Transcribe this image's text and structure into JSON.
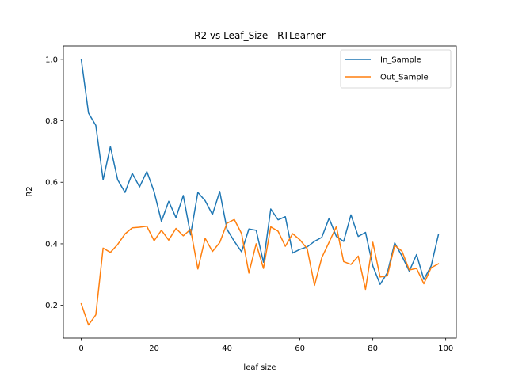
{
  "chart_data": {
    "type": "line",
    "title": "R2 vs Leaf_Size - RTLearner",
    "xlabel": "leaf size",
    "ylabel": "R2",
    "xlim": [
      -4.9,
      102.9
    ],
    "ylim": [
      0.0935,
      1.0434
    ],
    "xticks": [
      0,
      20,
      40,
      60,
      80,
      100
    ],
    "xtick_labels": [
      "0",
      "20",
      "40",
      "60",
      "80",
      "100"
    ],
    "yticks": [
      0.2,
      0.4,
      0.6,
      0.8,
      1.0
    ],
    "ytick_labels": [
      "0.2",
      "0.4",
      "0.6",
      "0.8",
      "1.0"
    ],
    "grid": false,
    "legend_position": "top-right",
    "x": [
      0,
      2,
      4,
      6,
      8,
      10,
      12,
      14,
      16,
      18,
      20,
      22,
      24,
      26,
      28,
      30,
      32,
      34,
      36,
      38,
      40,
      42,
      44,
      46,
      48,
      50,
      52,
      54,
      56,
      58,
      60,
      62,
      64,
      66,
      68,
      70,
      72,
      74,
      76,
      78,
      80,
      82,
      84,
      86,
      88,
      90,
      92,
      94,
      96,
      98
    ],
    "series": [
      {
        "name": "In_Sample",
        "color": "#1f77b4",
        "values": [
          1.0,
          0.825,
          0.785,
          0.608,
          0.716,
          0.608,
          0.567,
          0.629,
          0.585,
          0.635,
          0.569,
          0.473,
          0.538,
          0.485,
          0.557,
          0.429,
          0.567,
          0.54,
          0.495,
          0.57,
          0.447,
          0.408,
          0.374,
          0.448,
          0.444,
          0.34,
          0.513,
          0.478,
          0.488,
          0.37,
          0.382,
          0.39,
          0.408,
          0.421,
          0.483,
          0.424,
          0.408,
          0.494,
          0.424,
          0.437,
          0.328,
          0.268,
          0.306,
          0.403,
          0.36,
          0.311,
          0.365,
          0.284,
          0.328,
          0.43
        ]
      },
      {
        "name": "Out_Sample",
        "color": "#ff7f0e",
        "values": [
          0.205,
          0.136,
          0.169,
          0.386,
          0.372,
          0.398,
          0.432,
          0.452,
          0.454,
          0.457,
          0.41,
          0.444,
          0.412,
          0.45,
          0.426,
          0.447,
          0.318,
          0.418,
          0.375,
          0.404,
          0.467,
          0.479,
          0.433,
          0.305,
          0.4,
          0.32,
          0.455,
          0.441,
          0.392,
          0.433,
          0.413,
          0.384,
          0.265,
          0.355,
          0.405,
          0.456,
          0.342,
          0.333,
          0.36,
          0.252,
          0.405,
          0.292,
          0.296,
          0.395,
          0.376,
          0.315,
          0.32,
          0.27,
          0.322,
          0.335
        ]
      }
    ]
  }
}
